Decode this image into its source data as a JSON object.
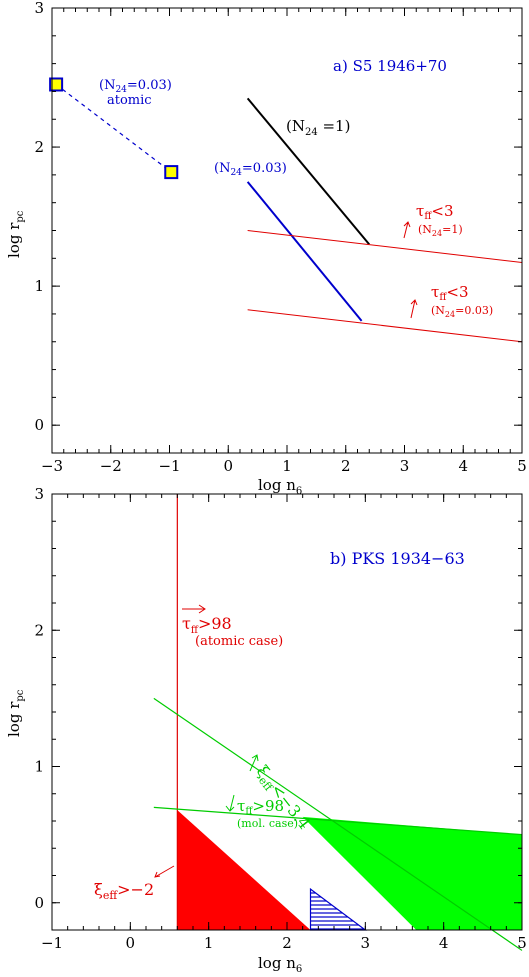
{
  "chart_data": [
    {
      "type": "line",
      "panel_title": "a) S5 1946+70",
      "xlabel": "log  n",
      "xlabel_sub": "6",
      "ylabel": "log  r",
      "ylabel_sub": "pc",
      "xlim": [
        -3,
        5
      ],
      "ylim": [
        -0.2,
        3
      ],
      "x_ticks": [
        -3,
        -2,
        -1,
        0,
        1,
        2,
        3,
        4,
        5
      ],
      "y_ticks": [
        0,
        1,
        2,
        3
      ],
      "colors": {
        "blue": "#0000cc",
        "red": "#e00000",
        "black": "#000000",
        "marker_fill": "#ffff00"
      },
      "series": [
        {
          "key": "atomic",
          "style": "dashed-blue",
          "points": [
            [
              -2.93,
              2.45
            ],
            [
              -0.97,
              1.82
            ]
          ],
          "markers": "yellow-square"
        },
        {
          "key": "n24_1",
          "style": "solid-black",
          "points": [
            [
              0.33,
              2.35
            ],
            [
              2.4,
              1.3
            ]
          ]
        },
        {
          "key": "n24_003",
          "style": "solid-blue",
          "points": [
            [
              0.33,
              1.75
            ],
            [
              2.27,
              0.75
            ]
          ]
        },
        {
          "key": "tau_n24_1",
          "style": "solid-red",
          "points": [
            [
              0.33,
              1.4
            ],
            [
              5.0,
              1.17
            ]
          ]
        },
        {
          "key": "tau_n24_003",
          "style": "solid-red",
          "points": [
            [
              0.33,
              0.83
            ],
            [
              5.0,
              0.6
            ]
          ]
        }
      ],
      "annotations": [
        {
          "key": "atomic_label",
          "lines": [
            "(N",
            "24",
            "=0.03)",
            "atomic"
          ]
        },
        {
          "key": "n24_1_label",
          "text": "(N",
          "sub": "24",
          "text2": " =1)"
        },
        {
          "key": "n24_003_label",
          "text": "(N",
          "sub": "24",
          "text2": "=0.03)"
        },
        {
          "key": "tau1_label",
          "text": "τ",
          "sub": "ff",
          "text2": "<3",
          "line2": "(N",
          "line2_sub": "24",
          "line2_end": "=1)"
        },
        {
          "key": "tau2_label",
          "text": "τ",
          "sub": "ff",
          "text2": "<3",
          "line2": "(N",
          "line2_sub": "24",
          "line2_end": "=0.03)"
        }
      ]
    },
    {
      "type": "area",
      "panel_title": "b) PKS 1934−63",
      "xlabel": "log  n",
      "xlabel_sub": "6",
      "ylabel": "log  r",
      "ylabel_sub": "pc",
      "xlim": [
        -1,
        5
      ],
      "ylim": [
        -0.2,
        3
      ],
      "x_ticks": [
        -1,
        0,
        1,
        2,
        3,
        4,
        5
      ],
      "y_ticks": [
        0,
        1,
        2,
        3
      ],
      "colors": {
        "red": "#ff0000",
        "green": "#00ff00",
        "green_line": "#00cc00",
        "blue": "#0000cc",
        "red_line": "#e00000"
      },
      "lines": [
        {
          "key": "tau_atomic_vertical",
          "style": "red",
          "points": [
            [
              0.6,
              -0.2
            ],
            [
              0.6,
              3.0
            ]
          ]
        },
        {
          "key": "xi_eff_diag",
          "style": "green",
          "points": [
            [
              0.3,
              1.5
            ],
            [
              5.0,
              -0.35
            ]
          ]
        },
        {
          "key": "tau_mol",
          "style": "green",
          "points": [
            [
              0.3,
              0.7
            ],
            [
              5.0,
              0.5
            ]
          ]
        }
      ],
      "regions": [
        {
          "key": "red_region",
          "fill": "red",
          "points": [
            [
              0.6,
              0.68
            ],
            [
              0.6,
              -0.2
            ],
            [
              2.3,
              -0.2
            ]
          ]
        },
        {
          "key": "green_region",
          "fill": "green",
          "points": [
            [
              2.2,
              0.63
            ],
            [
              5.0,
              0.5
            ],
            [
              5.0,
              -0.2
            ],
            [
              3.65,
              -0.2
            ]
          ]
        },
        {
          "key": "hatched_region",
          "fill": "hatch-blue",
          "points": [
            [
              2.3,
              0.1
            ],
            [
              2.3,
              -0.2
            ],
            [
              3.0,
              -0.2
            ]
          ]
        }
      ],
      "annotations": [
        {
          "key": "tau_atomic",
          "text": "τ",
          "sub": "ff",
          "text2": ">98",
          "line2": "(atomic case)"
        },
        {
          "key": "xi_eff_34",
          "text": "ξ",
          "sub": "eff",
          "text2": "<−3.4"
        },
        {
          "key": "tau_mol",
          "text": "τ",
          "sub": "ff",
          "text2": ">98",
          "line2": "(mol. case)"
        },
        {
          "key": "xi_eff_2",
          "text": "ξ",
          "sub": "eff",
          "text2": ">−2"
        }
      ]
    }
  ]
}
